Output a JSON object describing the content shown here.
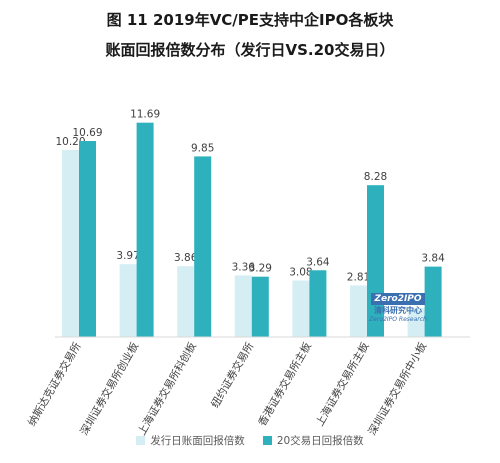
{
  "title_line1": "图 11 2019年VC/PE支持中企IPO各板块",
  "title_line2": "账面回报倍数分布（发行日VS.20交易日）",
  "watermark": {
    "brand": "Zero2IPO",
    "cn": "清科研究中心",
    "en": "Zero2IPO Research"
  },
  "colors": {
    "issue_day": "#d4eef3",
    "day20": "#2eb1bd"
  },
  "chart_data": {
    "type": "bar",
    "categories": [
      "纳斯达克证券交易所",
      "深圳证券交易所创业板",
      "上海证券交易所科创板",
      "纽约证券交易所",
      "香港证券交易所主板",
      "上海证券交易所主板",
      "深圳证券交易所中小板"
    ],
    "series": [
      {
        "name": "发行日账面回报倍数",
        "values": [
          10.2,
          3.97,
          3.86,
          3.36,
          3.08,
          2.81,
          1.58
        ]
      },
      {
        "name": "20交易日回报倍数",
        "values": [
          10.69,
          11.69,
          9.85,
          3.29,
          3.64,
          8.28,
          3.84
        ]
      }
    ],
    "value_labels": [
      [
        "10.20",
        "3.97",
        "3.86",
        "3.36",
        "3.08",
        "2.81",
        "1.58"
      ],
      [
        "10.69",
        "11.69",
        "9.85",
        "3.29",
        "3.64",
        "8.28",
        "3.84"
      ]
    ],
    "ylim": [
      0,
      12
    ],
    "grid": false,
    "legend_position": "bottom"
  }
}
